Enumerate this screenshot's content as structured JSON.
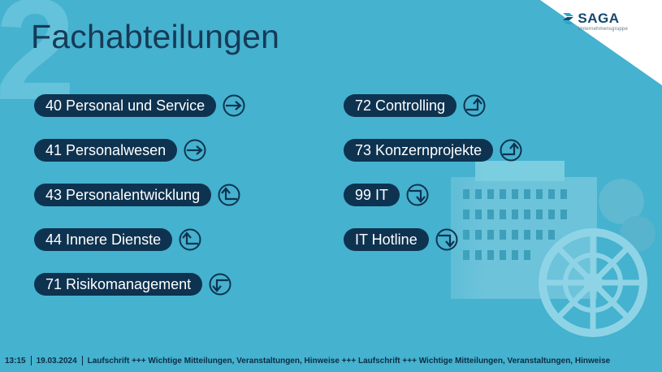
{
  "header": {
    "number": "2",
    "title": "Fachabteilungen"
  },
  "logo": {
    "name": "SAGA",
    "subtitle": "Unternehmensgruppe"
  },
  "colors": {
    "background": "#45b2cf",
    "pill": "#0e3350",
    "pill_text": "#ffffff",
    "title": "#163a57"
  },
  "departments_left": [
    {
      "label": "40 Personal und Service",
      "icon": "arrow-right-icon"
    },
    {
      "label": "41 Personalwesen",
      "icon": "arrow-right-icon"
    },
    {
      "label": "43 Personalentwicklung",
      "icon": "arrow-up-left-icon"
    },
    {
      "label": "44 Innere Dienste",
      "icon": "arrow-up-left-icon"
    },
    {
      "label": "71 Risikomanagement",
      "icon": "arrow-down-left-icon"
    }
  ],
  "departments_right": [
    {
      "label": "72 Controlling",
      "icon": "arrow-up-right-icon"
    },
    {
      "label": "73 Konzernprojekte",
      "icon": "arrow-up-right-icon"
    },
    {
      "label": "99 IT",
      "icon": "arrow-down-right-icon"
    },
    {
      "label": "IT Hotline",
      "icon": "arrow-down-right-icon"
    }
  ],
  "ticker": {
    "time": "13:15",
    "date": "19.03.2024",
    "text": "Laufschrift +++ Wichtige Mitteilungen, Veranstaltungen, Hinweise +++ Laufschrift +++ Wichtige Mitteilungen, Veranstaltungen, Hinweise"
  }
}
